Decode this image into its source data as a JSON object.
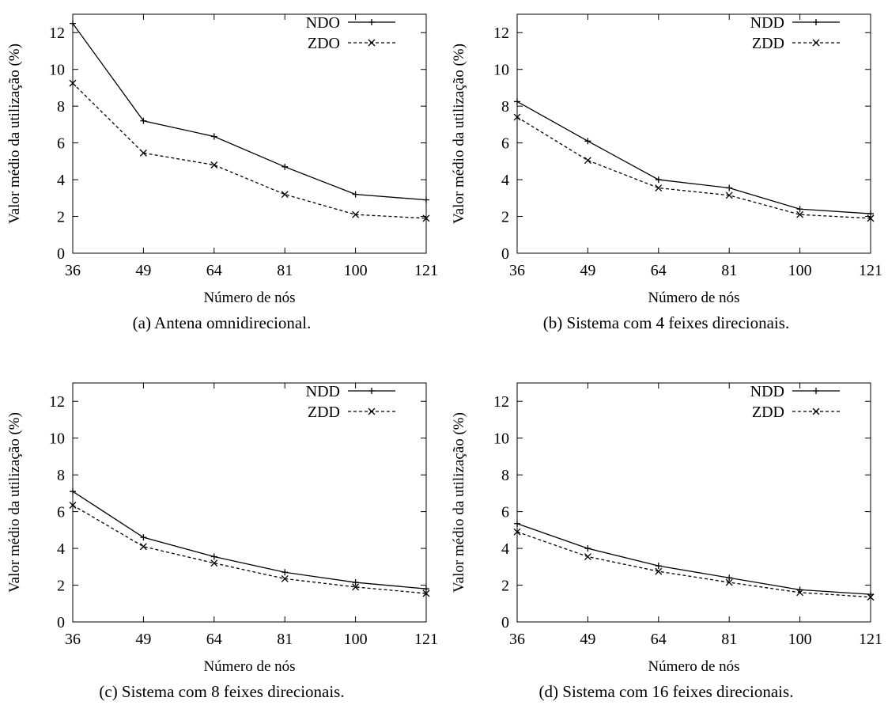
{
  "chart_data": [
    {
      "type": "line",
      "caption": "(a)  Antena omnidirecional.",
      "xlabel": "Número de nós",
      "ylabel": "Valor médio da utilização (%)",
      "categories": [
        "36",
        "49",
        "64",
        "81",
        "100",
        "121"
      ],
      "ylim": [
        0,
        13
      ],
      "yticks": [
        "0",
        "2",
        "4",
        "6",
        "8",
        "10",
        "12"
      ],
      "legend_position": "top-right",
      "grid": false,
      "series": [
        {
          "name": "NDO",
          "style": "solid",
          "marker": "plus",
          "values": [
            12.5,
            7.2,
            6.35,
            4.7,
            3.2,
            2.9
          ]
        },
        {
          "name": "ZDO",
          "style": "dashed",
          "marker": "cross",
          "values": [
            9.25,
            5.45,
            4.8,
            3.2,
            2.1,
            1.9
          ]
        }
      ]
    },
    {
      "type": "line",
      "caption": "(b)  Sistema com 4 feixes direcionais.",
      "xlabel": "Número de nós",
      "ylabel": "Valor médio da utilização (%)",
      "categories": [
        "36",
        "49",
        "64",
        "81",
        "100",
        "121"
      ],
      "ylim": [
        0,
        13
      ],
      "yticks": [
        "0",
        "2",
        "4",
        "6",
        "8",
        "10",
        "12"
      ],
      "legend_position": "top-right",
      "grid": false,
      "series": [
        {
          "name": "NDD",
          "style": "solid",
          "marker": "plus",
          "values": [
            8.25,
            6.1,
            4.0,
            3.55,
            2.4,
            2.15
          ]
        },
        {
          "name": "ZDD",
          "style": "dashed",
          "marker": "cross",
          "values": [
            7.4,
            5.05,
            3.55,
            3.15,
            2.1,
            1.9
          ]
        }
      ]
    },
    {
      "type": "line",
      "caption": "(c)  Sistema com 8 feixes direcionais.",
      "xlabel": "Número de nós",
      "ylabel": "Valor médio da utilização (%)",
      "categories": [
        "36",
        "49",
        "64",
        "81",
        "100",
        "121"
      ],
      "ylim": [
        0,
        13
      ],
      "yticks": [
        "0",
        "2",
        "4",
        "6",
        "8",
        "10",
        "12"
      ],
      "legend_position": "top-right",
      "grid": false,
      "series": [
        {
          "name": "NDD",
          "style": "solid",
          "marker": "plus",
          "values": [
            7.1,
            4.6,
            3.55,
            2.7,
            2.15,
            1.8
          ]
        },
        {
          "name": "ZDD",
          "style": "dashed",
          "marker": "cross",
          "values": [
            6.35,
            4.1,
            3.2,
            2.35,
            1.9,
            1.55
          ]
        }
      ]
    },
    {
      "type": "line",
      "caption": "(d)  Sistema com 16 feixes direcionais.",
      "xlabel": "Número de nós",
      "ylabel": "Valor médio da utilização (%)",
      "categories": [
        "36",
        "49",
        "64",
        "81",
        "100",
        "121"
      ],
      "ylim": [
        0,
        13
      ],
      "yticks": [
        "0",
        "2",
        "4",
        "6",
        "8",
        "10",
        "12"
      ],
      "legend_position": "top-right",
      "grid": false,
      "series": [
        {
          "name": "NDD",
          "style": "solid",
          "marker": "plus",
          "values": [
            5.35,
            4.0,
            3.05,
            2.4,
            1.75,
            1.5
          ]
        },
        {
          "name": "ZDD",
          "style": "dashed",
          "marker": "cross",
          "values": [
            4.9,
            3.55,
            2.75,
            2.15,
            1.6,
            1.35
          ]
        }
      ]
    }
  ]
}
